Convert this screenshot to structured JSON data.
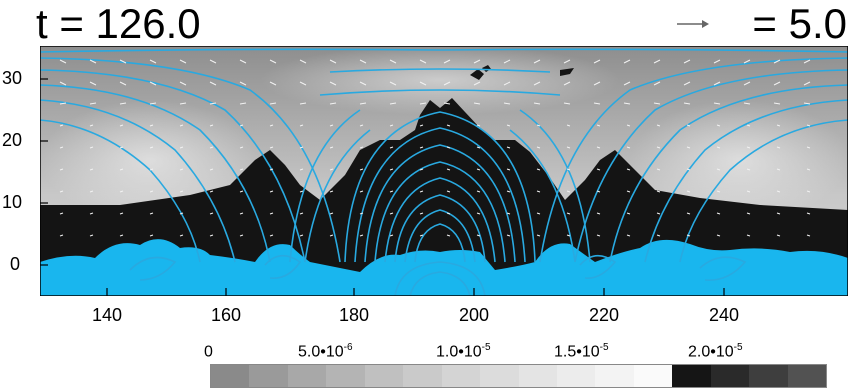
{
  "header": {
    "time_label": "t = 126.0",
    "vector_scale_label": "= 5.0"
  },
  "axes": {
    "x_ticks": [
      "140",
      "160",
      "180",
      "200",
      "220",
      "240"
    ],
    "y_ticks": [
      "30",
      "20",
      "10",
      "0"
    ]
  },
  "colorbar": {
    "labels": [
      {
        "mantissa": "0",
        "exp": ""
      },
      {
        "mantissa": "5.0•10",
        "exp": "-6"
      },
      {
        "mantissa": "1.0•10",
        "exp": "-5"
      },
      {
        "mantissa": "1.5•10",
        "exp": "-5"
      },
      {
        "mantissa": "2.0•10",
        "exp": "-5"
      }
    ],
    "swatches": [
      "#8a8a8a",
      "#9a9a9a",
      "#a8a8a8",
      "#b4b4b4",
      "#c0c0c0",
      "#cacaca",
      "#d4d4d4",
      "#dcdcdc",
      "#e4e4e4",
      "#ececec",
      "#f3f3f3",
      "#fafafa",
      "#151515",
      "#2a2a2a",
      "#3e3e3e",
      "#525252"
    ]
  },
  "colors": {
    "field_lines": "#29a9e0",
    "dense_fluid": "#19b6ee",
    "dark_region": "#141414",
    "background_gray": "#9c9c9c"
  }
}
